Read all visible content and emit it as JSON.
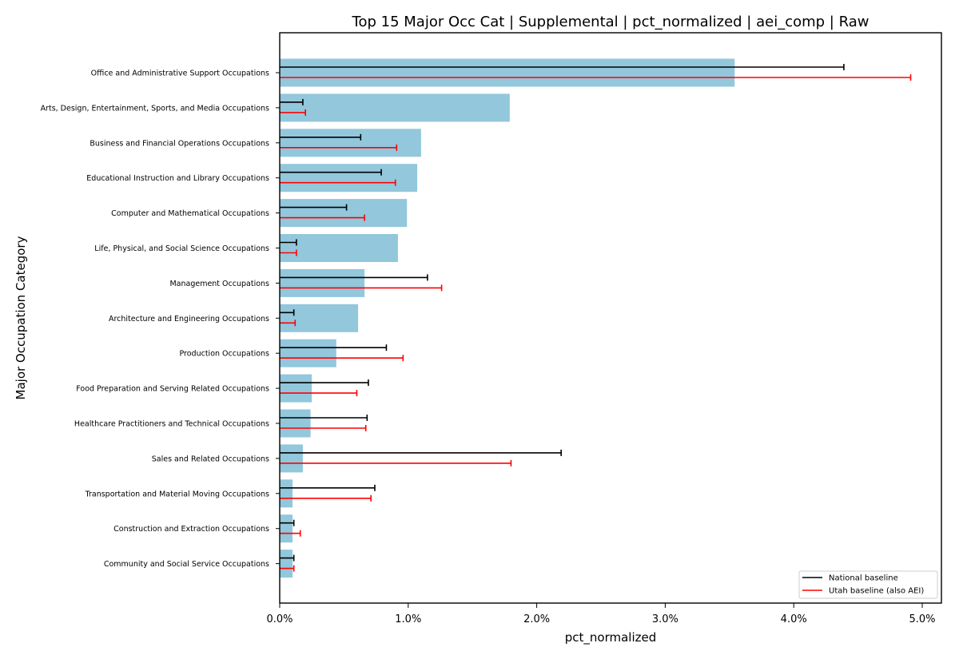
{
  "chart_data": {
    "type": "bar",
    "orientation": "horizontal",
    "title": "Top 15 Major Occ Cat | Supplemental | pct_normalized | aei_comp | Raw",
    "xlabel": "pct_normalized",
    "ylabel": "Major Occupation Category",
    "xlim": [
      0,
      5.15
    ],
    "x_ticks": [
      0,
      1,
      2,
      3,
      4,
      5
    ],
    "x_tick_labels": [
      "0.0%",
      "1.0%",
      "2.0%",
      "3.0%",
      "4.0%",
      "5.0%"
    ],
    "grid": false,
    "legend_position": "bottom-right",
    "bar_color": "#92c7dc",
    "categories": [
      "Office and Administrative Support Occupations",
      "Arts, Design, Entertainment, Sports, and Media Occupations",
      "Business and Financial Operations Occupations",
      "Educational Instruction and Library Occupations",
      "Computer and Mathematical Occupations",
      "Life, Physical, and Social Science Occupations",
      "Management Occupations",
      "Architecture and Engineering Occupations",
      "Production Occupations",
      "Food Preparation and Serving Related Occupations",
      "Healthcare Practitioners and Technical Occupations",
      "Sales and Related Occupations",
      "Transportation and Material Moving Occupations",
      "Construction and Extraction Occupations",
      "Community and Social Service Occupations"
    ],
    "values": [
      3.54,
      1.79,
      1.1,
      1.07,
      0.99,
      0.92,
      0.66,
      0.61,
      0.44,
      0.25,
      0.24,
      0.18,
      0.1,
      0.1,
      0.1
    ],
    "series": [
      {
        "name": "National baseline",
        "color": "#000000",
        "values": [
          4.39,
          0.18,
          0.63,
          0.79,
          0.52,
          0.13,
          1.15,
          0.11,
          0.83,
          0.69,
          0.68,
          2.19,
          0.74,
          0.11,
          0.11
        ]
      },
      {
        "name": "Utah baseline (also AEI)",
        "color": "#ff0000",
        "values": [
          4.91,
          0.2,
          0.91,
          0.9,
          0.66,
          0.13,
          1.26,
          0.12,
          0.96,
          0.6,
          0.67,
          1.8,
          0.71,
          0.16,
          0.11
        ]
      }
    ]
  }
}
